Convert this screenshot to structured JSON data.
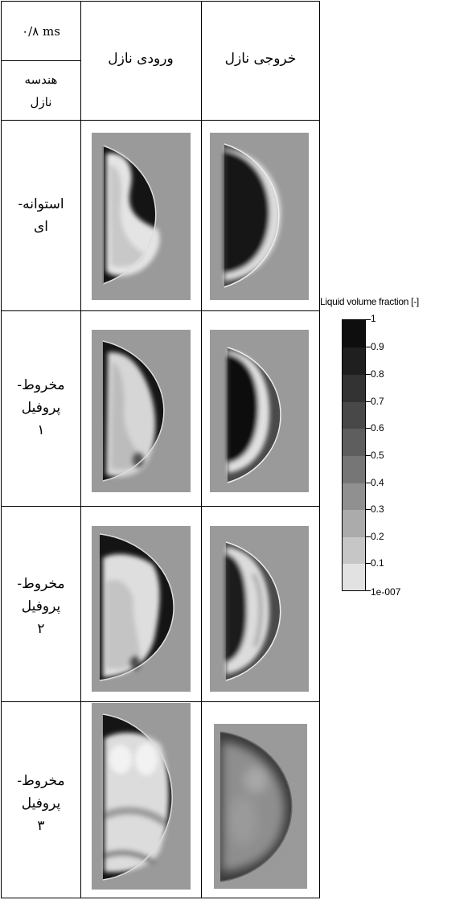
{
  "header": {
    "time_label": "۰/۸ ms",
    "geometry_label_line1": "هندسه",
    "geometry_label_line2": "نازل",
    "col_inlet": "ورودی نازل",
    "col_outlet": "خروجی نازل"
  },
  "rows": [
    {
      "label_line1": "استوانه-",
      "label_line2": "ای",
      "label_line3": ""
    },
    {
      "label_line1": "مخروط-",
      "label_line2": "پروفیل",
      "label_line3": "۱"
    },
    {
      "label_line1": "مخروط-",
      "label_line2": "پروفیل",
      "label_line3": "۲"
    },
    {
      "label_line1": "مخروط-",
      "label_line2": "پروفیل",
      "label_line3": "۳"
    }
  ],
  "legend": {
    "title": "Liquid volume fraction [-]",
    "labels": [
      "1",
      "0.9",
      "0.8",
      "0.7",
      "0.6",
      "0.5",
      "0.4",
      "0.3",
      "0.2",
      "0.1",
      "1e-007"
    ]
  },
  "colors": {
    "background_panel": "#9a9a9a",
    "liquid_dark": "#111111",
    "vapor_light": "#eeeeee"
  }
}
